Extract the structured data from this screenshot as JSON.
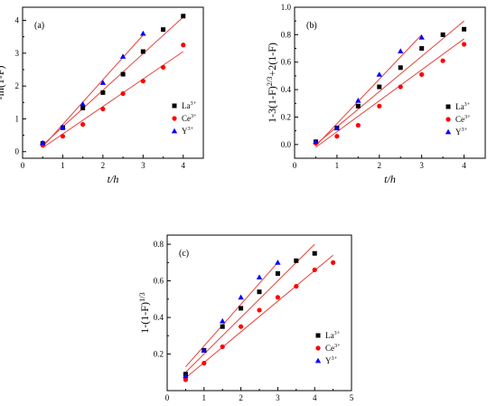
{
  "chart_data": [
    {
      "type": "scatter",
      "panel_label": "(a)",
      "xlabel": "t/h",
      "ylabel": "-ln(1-F)",
      "xlim": [
        0,
        4.5
      ],
      "ylim": [
        -0.2,
        4.4
      ],
      "xticks": [
        0,
        1,
        2,
        3,
        4
      ],
      "yticks": [
        0,
        1,
        2,
        3,
        4
      ],
      "legend_placement": "right",
      "series": [
        {
          "name": "La3+",
          "marker": "square",
          "color": "#000000",
          "x": [
            0.5,
            1,
            1.5,
            2,
            2.5,
            3,
            3.5,
            4
          ],
          "y": [
            0.25,
            0.73,
            1.33,
            1.8,
            2.36,
            3.05,
            3.72,
            4.13
          ],
          "fit": [
            [
              0.5,
              0.2
            ],
            [
              4,
              4.1
            ]
          ]
        },
        {
          "name": "Ce3+",
          "marker": "circle",
          "color": "#ff0000",
          "x": [
            0.5,
            1,
            1.5,
            2,
            2.5,
            3,
            3.5,
            4
          ],
          "y": [
            0.2,
            0.47,
            0.83,
            1.3,
            1.77,
            2.15,
            2.57,
            3.25
          ],
          "fit": [
            [
              0.5,
              0.12
            ],
            [
              4,
              3.05
            ]
          ]
        },
        {
          "name": "Y3+",
          "marker": "triangle",
          "color": "#0000ff",
          "x": [
            0.5,
            1,
            1.5,
            2,
            2.5,
            3
          ],
          "y": [
            0.27,
            0.75,
            1.45,
            2.1,
            2.9,
            3.6
          ],
          "fit": [
            [
              0.5,
              0.15
            ],
            [
              3,
              3.55
            ]
          ]
        }
      ]
    },
    {
      "type": "scatter",
      "panel_label": "(b)",
      "xlabel": "t/h",
      "ylabel": "1-3(1-F)2/3+2(1-F)",
      "xlim": [
        0,
        4.5
      ],
      "ylim": [
        -0.1,
        1.0
      ],
      "xticks": [
        0,
        1,
        2,
        3,
        4
      ],
      "yticks": [
        0.0,
        0.2,
        0.4,
        0.6,
        0.8,
        1.0
      ],
      "legend_placement": "right",
      "series": [
        {
          "name": "La3+",
          "marker": "square",
          "color": "#000000",
          "x": [
            0.5,
            1,
            1.5,
            2,
            2.5,
            3,
            3.5,
            4
          ],
          "y": [
            0.02,
            0.12,
            0.28,
            0.42,
            0.56,
            0.7,
            0.8,
            0.84
          ],
          "fit": [
            [
              0.5,
              0.0
            ],
            [
              4,
              0.9
            ]
          ]
        },
        {
          "name": "Ce3+",
          "marker": "circle",
          "color": "#ff0000",
          "x": [
            0.5,
            1,
            1.5,
            2,
            2.5,
            3,
            3.5,
            4
          ],
          "y": [
            0.01,
            0.06,
            0.14,
            0.28,
            0.42,
            0.51,
            0.61,
            0.73
          ],
          "fit": [
            [
              0.5,
              -0.02
            ],
            [
              4,
              0.77
            ]
          ]
        },
        {
          "name": "Y3+",
          "marker": "triangle",
          "color": "#0000ff",
          "x": [
            0.5,
            1,
            1.5,
            2,
            2.5,
            3
          ],
          "y": [
            0.02,
            0.12,
            0.32,
            0.51,
            0.68,
            0.78
          ],
          "fit": [
            [
              0.5,
              -0.01
            ],
            [
              3,
              0.8
            ]
          ]
        }
      ]
    },
    {
      "type": "scatter",
      "panel_label": "(c)",
      "xlabel": "t/h",
      "ylabel": "1-(1-F)1/3",
      "xlim": [
        0,
        5
      ],
      "ylim": [
        0.0,
        0.85
      ],
      "xticks": [
        0,
        1,
        2,
        3,
        4,
        5
      ],
      "yticks": [
        0.2,
        0.4,
        0.6,
        0.8
      ],
      "legend_placement": "right",
      "series": [
        {
          "name": "La3+",
          "marker": "square",
          "color": "#000000",
          "x": [
            0.5,
            1,
            1.5,
            2,
            2.5,
            3,
            3.5,
            4
          ],
          "y": [
            0.09,
            0.22,
            0.35,
            0.45,
            0.54,
            0.64,
            0.71,
            0.75
          ],
          "fit": [
            [
              0.5,
              0.1
            ],
            [
              4,
              0.8
            ]
          ]
        },
        {
          "name": "Ce3+",
          "marker": "circle",
          "color": "#ff0000",
          "x": [
            0.5,
            1,
            1.5,
            2,
            2.5,
            3,
            3.5,
            4,
            4.5
          ],
          "y": [
            0.06,
            0.15,
            0.24,
            0.35,
            0.44,
            0.51,
            0.57,
            0.66,
            0.7
          ],
          "fit": [
            [
              0.5,
              0.07
            ],
            [
              4.5,
              0.74
            ]
          ]
        },
        {
          "name": "Y3+",
          "marker": "triangle",
          "color": "#0000ff",
          "x": [
            0.5,
            1,
            1.5,
            2,
            2.5,
            3
          ],
          "y": [
            0.08,
            0.22,
            0.38,
            0.51,
            0.62,
            0.7
          ],
          "fit": [
            [
              0.5,
              0.13
            ],
            [
              3,
              0.7
            ]
          ]
        }
      ]
    }
  ]
}
